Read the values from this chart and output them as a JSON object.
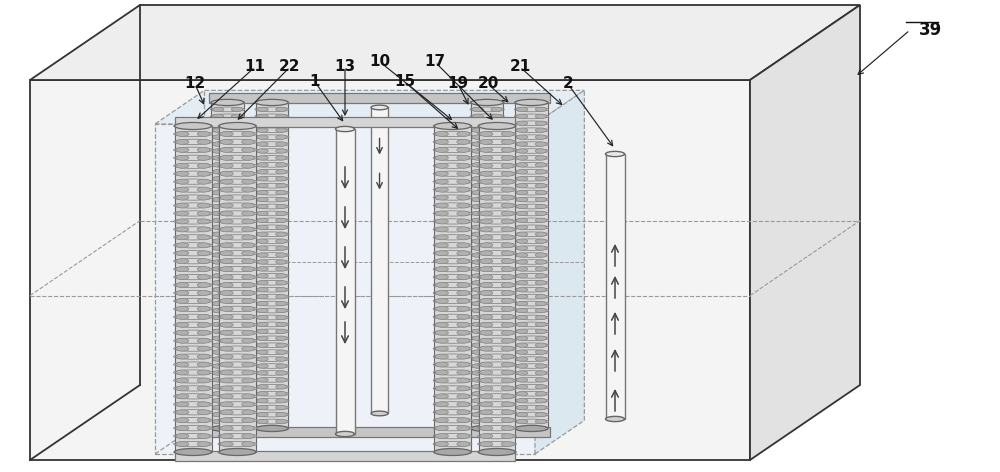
{
  "bg": "#ffffff",
  "lc": "#333333",
  "dc": "#999999",
  "outer_face": "#f4f4f4",
  "outer_top": "#eeeeee",
  "outer_right": "#e2e2e2",
  "inner_face": "#eef2f8",
  "inner_top": "#e4ecf4",
  "inner_right": "#dce8f0",
  "heater_body": "#c0c0c0",
  "heater_edge": "#555555",
  "well_body": "#f0f0f0",
  "well_edge": "#666666",
  "arrow_color": "#444444",
  "label_color": "#111111",
  "label_fs": 11,
  "label_fs_big": 12
}
